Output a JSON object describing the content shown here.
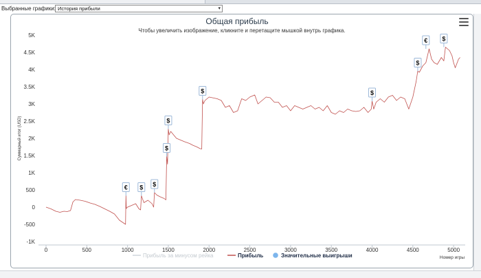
{
  "toolbar": {
    "chart_select_label": "Выбранные графики:",
    "chart_select_value": "История прибыли"
  },
  "icons": {
    "menu": "hamburger-menu-icon",
    "dropdown": "chevron-down-icon"
  },
  "colors": {
    "profit_line": "#c0504d",
    "ev_line": "#b8c4ce",
    "marker_fill": "#7cb5ec",
    "title": "#2a3a4a"
  },
  "chart_data": {
    "type": "line",
    "title": "Общая прибыль",
    "subtitle": "Чтобы увеличить изображение, кликните и перетащите мышкой внутрь графика.",
    "xlabel": "Номер игры",
    "ylabel": "Суммарный итог (USD)",
    "xlim": [
      0,
      5100
    ],
    "ylim": [
      -1000,
      5000
    ],
    "x_ticks": [
      0,
      500,
      1000,
      1500,
      2000,
      2500,
      3000,
      3500,
      4000,
      4500,
      5000
    ],
    "x_tick_labels": [
      "0",
      "500",
      "1000",
      "1500",
      "2000",
      "2500",
      "3000",
      "3500",
      "4000",
      "4500",
      "5000"
    ],
    "y_ticks": [
      -1000,
      -500,
      0,
      500,
      1000,
      1500,
      2000,
      2500,
      3000,
      3500,
      4000,
      4500,
      5000
    ],
    "y_tick_labels": [
      "-1K",
      "-500",
      "0",
      "500",
      "1K",
      "1.5K",
      "2K",
      "2.5K",
      "3K",
      "3.5K",
      "4K",
      "4.5K",
      "5K"
    ],
    "grid": false,
    "legend_position": "bottom-center",
    "series": [
      {
        "name": "Прибыль",
        "color": "#c0504d",
        "x": [
          0,
          60,
          120,
          170,
          220,
          260,
          300,
          330,
          360,
          420,
          480,
          540,
          600,
          660,
          720,
          780,
          840,
          900,
          950,
          975,
          980,
          985,
          1000,
          1050,
          1100,
          1140,
          1160,
          1170,
          1200,
          1250,
          1300,
          1320,
          1330,
          1360,
          1400,
          1450,
          1470,
          1480,
          1490,
          1500,
          1510,
          1530,
          1600,
          1650,
          1700,
          1760,
          1800,
          1850,
          1890,
          1910,
          1920,
          1930,
          1950,
          2000,
          2100,
          2150,
          2200,
          2250,
          2300,
          2350,
          2400,
          2450,
          2500,
          2560,
          2600,
          2650,
          2700,
          2750,
          2800,
          2850,
          2900,
          2950,
          3000,
          3050,
          3100,
          3150,
          3200,
          3250,
          3300,
          3350,
          3400,
          3450,
          3500,
          3550,
          3600,
          3650,
          3700,
          3750,
          3800,
          3850,
          3900,
          3950,
          3990,
          4000,
          4020,
          4050,
          4100,
          4150,
          4200,
          4250,
          4300,
          4350,
          4400,
          4450,
          4500,
          4540,
          4560,
          4580,
          4620,
          4660,
          4700,
          4730,
          4760,
          4800,
          4850,
          4880,
          4900,
          4950,
          4980,
          5000,
          5020,
          5060,
          5080
        ],
        "y": [
          0,
          -50,
          -120,
          -150,
          -120,
          -130,
          -100,
          150,
          220,
          200,
          170,
          120,
          80,
          20,
          -50,
          -120,
          -200,
          -380,
          -460,
          -500,
          330,
          -40,
          0,
          50,
          100,
          -50,
          -80,
          330,
          130,
          200,
          100,
          0,
          420,
          350,
          300,
          250,
          210,
          1470,
          1250,
          2270,
          2100,
          2200,
          2000,
          1950,
          1900,
          1850,
          1800,
          1750,
          1700,
          1690,
          3130,
          3000,
          3100,
          3200,
          3150,
          3100,
          2900,
          2950,
          2750,
          2800,
          3150,
          3100,
          3200,
          3260,
          3000,
          3100,
          3200,
          3180,
          3050,
          3050,
          2900,
          2950,
          2800,
          2950,
          2900,
          2850,
          2900,
          2950,
          2850,
          2900,
          2800,
          2950,
          2750,
          2700,
          2800,
          2750,
          2850,
          2800,
          2780,
          2800,
          2900,
          2750,
          2850,
          3080,
          2850,
          3050,
          3150,
          3050,
          3200,
          3250,
          3100,
          3200,
          3150,
          2850,
          3200,
          3650,
          3950,
          3920,
          4100,
          4200,
          4600,
          4300,
          4200,
          4150,
          4350,
          4250,
          4650,
          4550,
          4400,
          4200,
          4050,
          4300,
          4350
        ],
        "markers": [
          {
            "x": 980,
            "y": 330,
            "symbol": "€"
          },
          {
            "x": 1170,
            "y": 330,
            "symbol": "$"
          },
          {
            "x": 1330,
            "y": 420,
            "symbol": "$"
          },
          {
            "x": 1480,
            "y": 1470,
            "symbol": "$"
          },
          {
            "x": 1500,
            "y": 2270,
            "symbol": "$"
          },
          {
            "x": 1920,
            "y": 3130,
            "symbol": "$"
          },
          {
            "x": 4000,
            "y": 3080,
            "symbol": "$"
          },
          {
            "x": 4560,
            "y": 3950,
            "symbol": "$"
          },
          {
            "x": 4660,
            "y": 4600,
            "symbol": "€"
          },
          {
            "x": 4880,
            "y": 4650,
            "symbol": "$"
          }
        ]
      },
      {
        "name": "Прибыль за минусом рейка",
        "color": "#b8c4ce",
        "visible": false,
        "x": [],
        "y": []
      },
      {
        "name": "Значительные выигрыши",
        "color": "#7cb5ec",
        "type": "marker"
      }
    ]
  }
}
